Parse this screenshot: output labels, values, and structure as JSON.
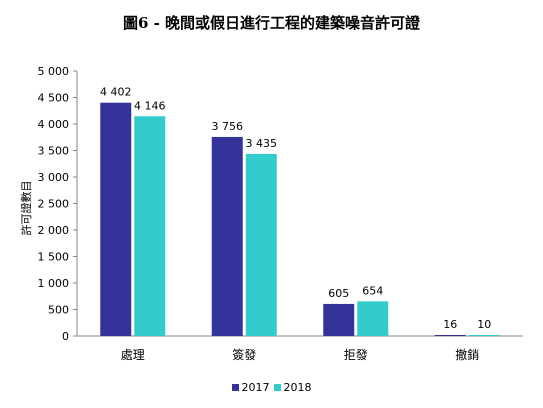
{
  "chart_data": {
    "type": "bar",
    "title": "圖6 - 晚間或假日進行工程的建築噪音許可證",
    "ylabel": "許可證數目",
    "xlabel": "",
    "categories": [
      "處理",
      "簽發",
      "拒發",
      "撤銷"
    ],
    "series": [
      {
        "name": "2017",
        "values": [
          4402,
          3756,
          605,
          16
        ],
        "value_labels": [
          "4 402",
          "3 756",
          "605",
          "16"
        ],
        "color": "#333399"
      },
      {
        "name": "2018",
        "values": [
          4146,
          3435,
          654,
          10
        ],
        "value_labels": [
          "4 146",
          "3 435",
          "654",
          "10"
        ],
        "color": "#33CCCC"
      }
    ],
    "ylim": [
      0,
      5000
    ],
    "yticks": [
      0,
      500,
      1000,
      1500,
      2000,
      2500,
      3000,
      3500,
      4000,
      4500,
      5000
    ],
    "ytick_labels": [
      "0",
      "500",
      "1 000",
      "1 500",
      "2 000",
      "2 500",
      "3 000",
      "3 500",
      "4 000",
      "4 500",
      "5 000"
    ],
    "grid": false,
    "legend_position": "bottom"
  }
}
